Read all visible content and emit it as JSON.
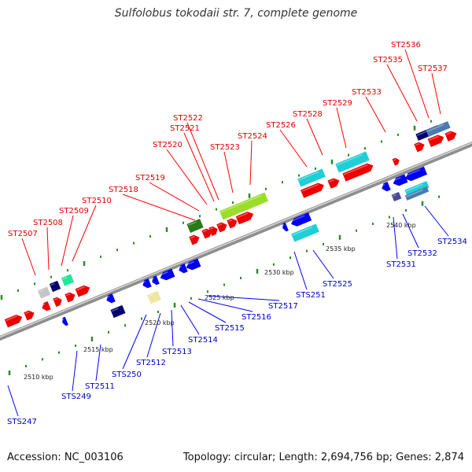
{
  "title": "Sulfolobus tokodaii str. 7, complete genome",
  "footer": {
    "accession": "Accession: NC_003106",
    "topology": "Topology: circular; Length: 2,694,756 bp; Genes: 2,874"
  },
  "colors": {
    "backbone": "#9a9a9a",
    "forward_gene": "#ee0000",
    "reverse_gene": "#0000ee",
    "label_forward": "#e00000",
    "label_reverse": "#0000c8",
    "tick": "#2a8a2a"
  },
  "scale_labels": [
    "2510 kbp",
    "2515 kbp",
    "2520 kbp",
    "2525 kbp",
    "2530 kbp",
    "2535 kbp",
    "2540 kbp"
  ],
  "top_labels": [
    "ST2507",
    "ST2508",
    "ST2509",
    "ST2510",
    "ST2518",
    "ST2519",
    "ST2520",
    "ST2521",
    "ST2522",
    "ST2523",
    "ST2524",
    "ST2526",
    "ST2528",
    "ST2529",
    "ST2533",
    "ST2535",
    "ST2536",
    "ST2537"
  ],
  "bottom_labels": [
    "STS247",
    "STS249",
    "ST2511",
    "STS250",
    "ST2512",
    "ST2513",
    "ST2514",
    "ST2515",
    "ST2516",
    "ST2517",
    "STS251",
    "ST2525",
    "ST2531",
    "ST2532",
    "ST2534"
  ]
}
